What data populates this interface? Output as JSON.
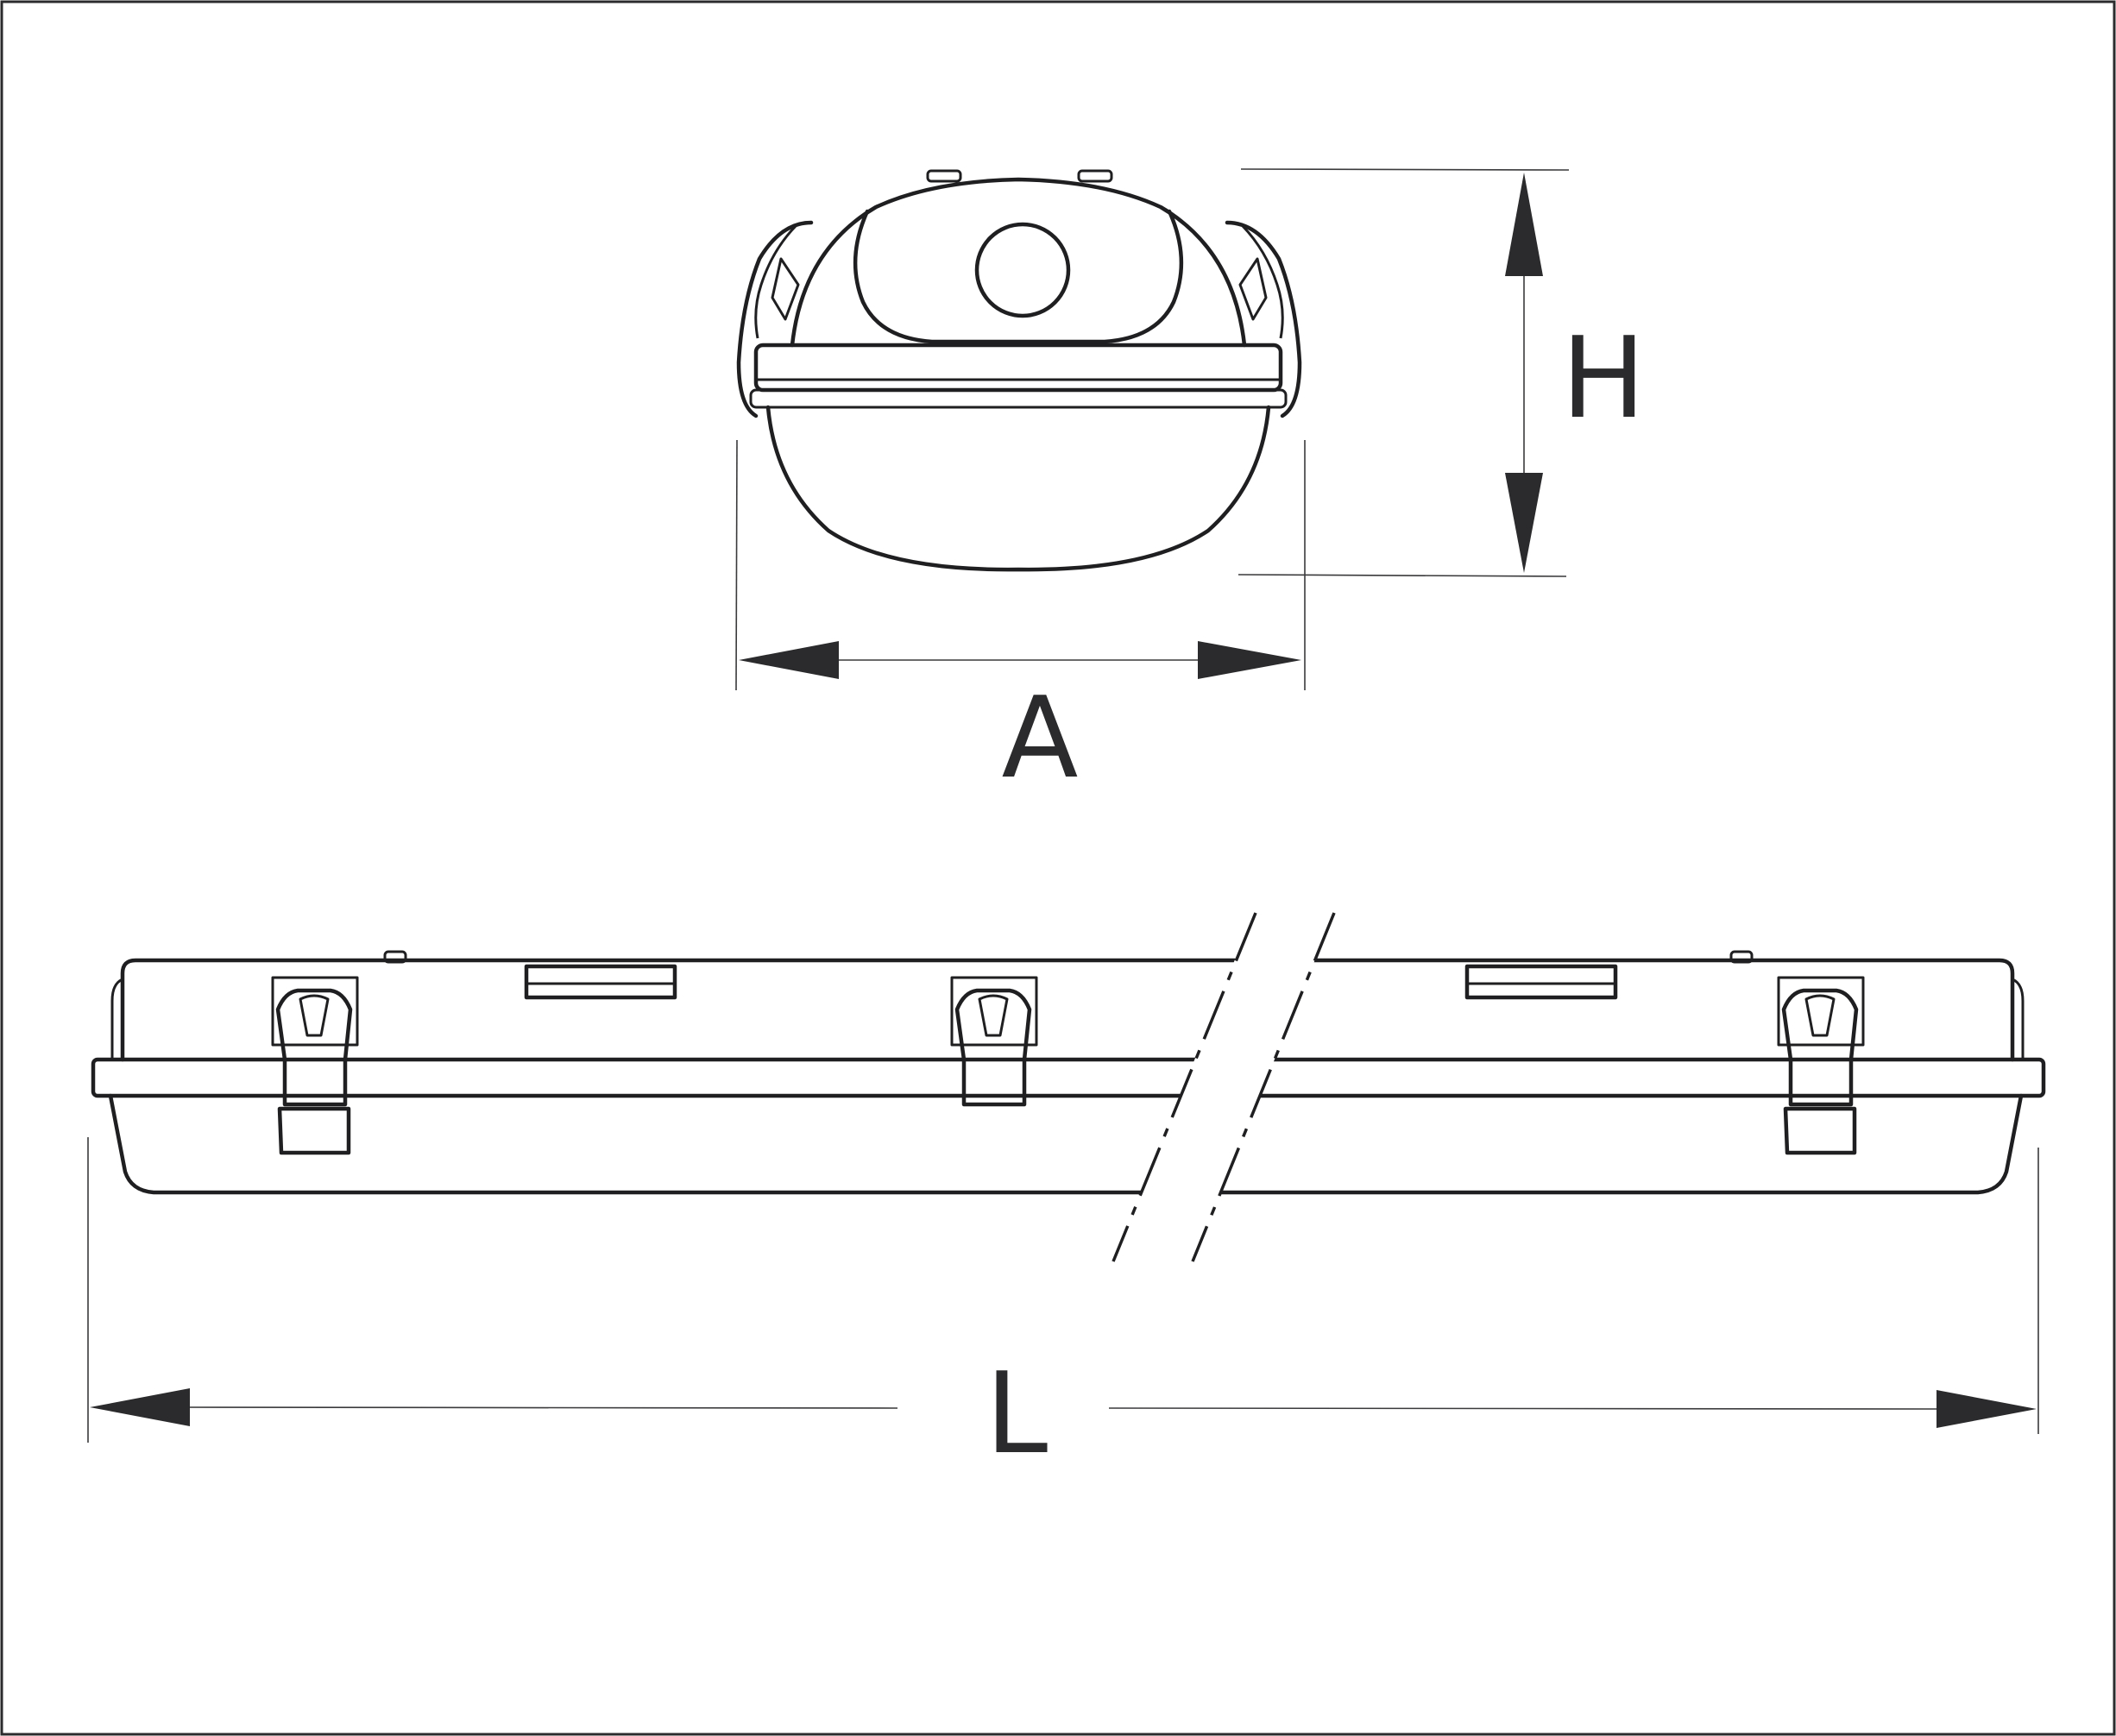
{
  "dimensions": {
    "width_label": "A",
    "height_label": "H",
    "length_label": "L"
  }
}
